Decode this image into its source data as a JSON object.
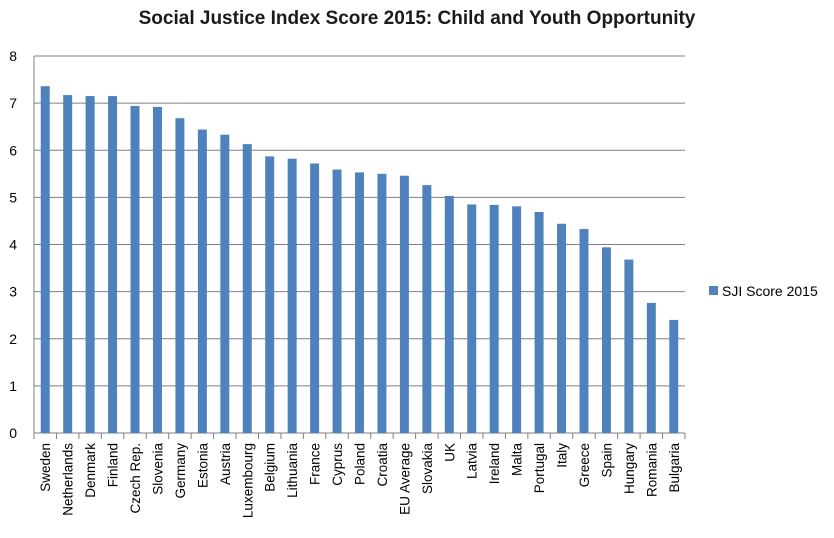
{
  "chart_data": {
    "type": "bar",
    "title": "Social Justice Index  Score 2015: Child and Youth Opportunity",
    "xlabel": "",
    "ylabel": "",
    "ylim": [
      0,
      8
    ],
    "yticks": [
      0,
      1,
      2,
      3,
      4,
      5,
      6,
      7,
      8
    ],
    "grid": true,
    "legend_position": "right",
    "bar_color": "#4F81BD",
    "categories": [
      "Sweden",
      "Netherlands",
      "Denmark",
      "Finland",
      "Czech Rep.",
      "Slovenia",
      "Germany",
      "Estonia",
      "Austria",
      "Luxembourg",
      "Belgium",
      "Lithuania",
      "France",
      "Cyprus",
      "Poland",
      "Croatia",
      "EU Average",
      "Slovakia",
      "UK",
      "Latvia",
      "Ireland",
      "Malta",
      "Portugal",
      "Italy",
      "Greece",
      "Spain",
      "Hungary",
      "Romania",
      "Bulgaria"
    ],
    "series": [
      {
        "name": "SJI Score 2015",
        "values": [
          7.36,
          7.17,
          7.15,
          7.15,
          6.94,
          6.92,
          6.68,
          6.44,
          6.33,
          6.13,
          5.87,
          5.82,
          5.72,
          5.59,
          5.53,
          5.5,
          5.46,
          5.26,
          5.03,
          4.85,
          4.84,
          4.81,
          4.69,
          4.44,
          4.33,
          3.94,
          3.68,
          2.76,
          2.4
        ]
      }
    ]
  }
}
